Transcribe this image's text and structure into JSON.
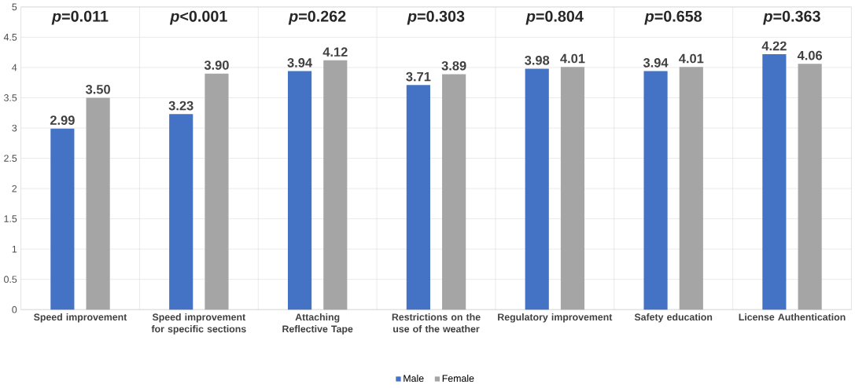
{
  "chart_data": {
    "type": "bar",
    "categories": [
      "Speed improvement",
      "Speed improvement for specific sections",
      "Attaching Reflective Tape",
      "Restrictions on the use of the weather",
      "Regulatory improvement",
      "Safety education",
      "License Authentication"
    ],
    "series": [
      {
        "name": "Male",
        "color": "#4472c4",
        "values": [
          2.99,
          3.23,
          3.94,
          3.71,
          3.98,
          3.94,
          4.22
        ],
        "value_labels": [
          "2.99",
          "3.23",
          "3.94",
          "3.71",
          "3.98",
          "3.94",
          "4.22"
        ]
      },
      {
        "name": "Female",
        "color": "#a5a5a5",
        "values": [
          3.5,
          3.9,
          4.12,
          3.89,
          4.01,
          4.01,
          4.06
        ],
        "value_labels": [
          "3.50",
          "3.90",
          "4.12",
          "3.89",
          "4.01",
          "4.01",
          "4.06"
        ]
      }
    ],
    "ylim": [
      0,
      5
    ],
    "yticks": [
      0,
      0.5,
      1,
      1.5,
      2,
      2.5,
      3,
      3.5,
      4,
      4.5,
      5
    ],
    "grid": true,
    "legend": "bottom",
    "annotations": [
      "*p*=0.011",
      "*p*<0.001",
      "*p*=0.262",
      "*p*=0.303",
      "*p*=0.804",
      "*p*=0.658",
      "*p*=0.363"
    ]
  }
}
